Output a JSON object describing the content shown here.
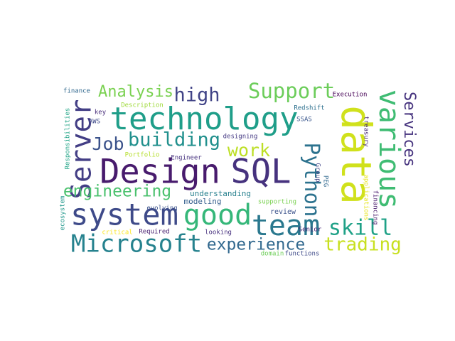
{
  "chart_data": {
    "type": "wordcloud",
    "words": [
      {
        "text": "technology",
        "color": "#1f9e89"
      },
      {
        "text": "data",
        "color": "#d0e11c"
      },
      {
        "text": "Design",
        "color": "#481b6d"
      },
      {
        "text": "SQL",
        "color": "#46327e"
      },
      {
        "text": "system",
        "color": "#3e4a89"
      },
      {
        "text": "good",
        "color": "#35b779"
      },
      {
        "text": "team",
        "color": "#2a788e"
      },
      {
        "text": "Microsoft",
        "color": "#26828e"
      },
      {
        "text": "Server",
        "color": "#433e85"
      },
      {
        "text": "various",
        "color": "#3fbc73"
      },
      {
        "text": "Support",
        "color": "#6ccd5a"
      },
      {
        "text": "high",
        "color": "#414487"
      },
      {
        "text": "Analysis",
        "color": "#7ad151"
      },
      {
        "text": "Job",
        "color": "#3b528b"
      },
      {
        "text": "building",
        "color": "#21908d"
      },
      {
        "text": "work",
        "color": "#bddf26"
      },
      {
        "text": "Python",
        "color": "#2c728e"
      },
      {
        "text": "Services",
        "color": "#46337e"
      },
      {
        "text": "engineering",
        "color": "#4ac16d"
      },
      {
        "text": "skill",
        "color": "#1fa187"
      },
      {
        "text": "experience",
        "color": "#31688e"
      },
      {
        "text": "trading",
        "color": "#c8e020"
      },
      {
        "text": "understanding",
        "color": "#27808e"
      },
      {
        "text": "modeling",
        "color": "#355f8d"
      },
      {
        "text": "evolving",
        "color": "#3b528b"
      },
      {
        "text": "review",
        "color": "#3b528b"
      },
      {
        "text": "Senior",
        "color": "#482475"
      },
      {
        "text": "supporting",
        "color": "#7ad151"
      },
      {
        "text": "designing",
        "color": "#443983"
      },
      {
        "text": "Engineer",
        "color": "#46327e"
      },
      {
        "text": "Portfolio",
        "color": "#b5de2b"
      },
      {
        "text": "Description",
        "color": "#9fda3a"
      },
      {
        "text": "key",
        "color": "#472c7a"
      },
      {
        "text": "AWS",
        "color": "#3e4989"
      },
      {
        "text": "finance",
        "color": "#31688e"
      },
      {
        "text": "Execution",
        "color": "#440154"
      },
      {
        "text": "Redshift",
        "color": "#2d708e"
      },
      {
        "text": "SSAS",
        "color": "#39568c"
      },
      {
        "text": "Required",
        "color": "#481f70"
      },
      {
        "text": "critical",
        "color": "#fde725"
      },
      {
        "text": "looking",
        "color": "#46307e"
      },
      {
        "text": "domain",
        "color": "#6ece58"
      },
      {
        "text": "functions",
        "color": "#3e4a89"
      },
      {
        "text": "Responsibilities",
        "color": "#20a486"
      },
      {
        "text": "ecosystem",
        "color": "#1f978b"
      },
      {
        "text": "treasury",
        "color": "#482878"
      },
      {
        "text": "applications",
        "color": "#e5e419"
      },
      {
        "text": "financing",
        "color": "#481a6c"
      },
      {
        "text": "Group",
        "color": "#414487"
      },
      {
        "text": "PEG",
        "color": "#31688e"
      }
    ]
  }
}
